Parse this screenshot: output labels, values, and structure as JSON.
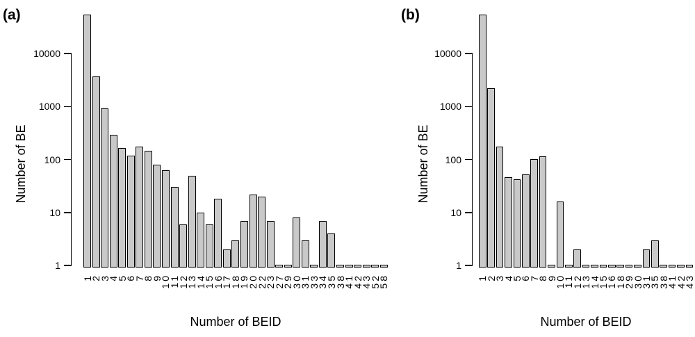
{
  "figure": {
    "background_color": "#ffffff",
    "bar_fill_color": "#c9c9c9",
    "bar_border_color": "#000000",
    "text_color": "#000000"
  },
  "chart_data": [
    {
      "panel": "(a)",
      "type": "bar",
      "xlabel": "Number of BEID",
      "ylabel": "Number of BE",
      "yscale": "log10",
      "grid": false,
      "legend": "none",
      "ylim": [
        1,
        55000
      ],
      "yticks": [
        "1",
        "10",
        "100",
        "1000",
        "10000"
      ],
      "categories": [
        "1",
        "2",
        "3",
        "4",
        "5",
        "6",
        "7",
        "8",
        "9",
        "10",
        "11",
        "12",
        "13",
        "14",
        "15",
        "16",
        "17",
        "18",
        "19",
        "20",
        "22",
        "23",
        "27",
        "29",
        "30",
        "31",
        "33",
        "34",
        "35",
        "38",
        "41",
        "42",
        "43",
        "52",
        "58"
      ],
      "values": [
        55000,
        3700,
        920,
        290,
        165,
        120,
        175,
        145,
        80,
        62,
        30,
        6,
        50,
        10,
        6,
        18,
        2,
        3,
        7,
        22,
        20,
        7,
        1,
        1,
        8,
        3,
        1,
        7,
        4,
        1,
        1,
        1,
        1,
        1,
        1
      ]
    },
    {
      "panel": "(b)",
      "type": "bar",
      "xlabel": "Number of BEID",
      "ylabel": "Number of BE",
      "yscale": "log10",
      "grid": false,
      "legend": "none",
      "ylim": [
        1,
        55000
      ],
      "yticks": [
        "1",
        "10",
        "100",
        "1000",
        "10000"
      ],
      "categories": [
        "1",
        "2",
        "3",
        "4",
        "5",
        "6",
        "7",
        "8",
        "9",
        "10",
        "11",
        "12",
        "13",
        "14",
        "15",
        "16",
        "18",
        "29",
        "30",
        "31",
        "35",
        "38",
        "41",
        "42",
        "43"
      ],
      "values": [
        55000,
        2200,
        175,
        47,
        42,
        52,
        102,
        115,
        1,
        16,
        1,
        2,
        1,
        1,
        1,
        1,
        1,
        1,
        1,
        2,
        3,
        1,
        1,
        1,
        1
      ]
    }
  ]
}
